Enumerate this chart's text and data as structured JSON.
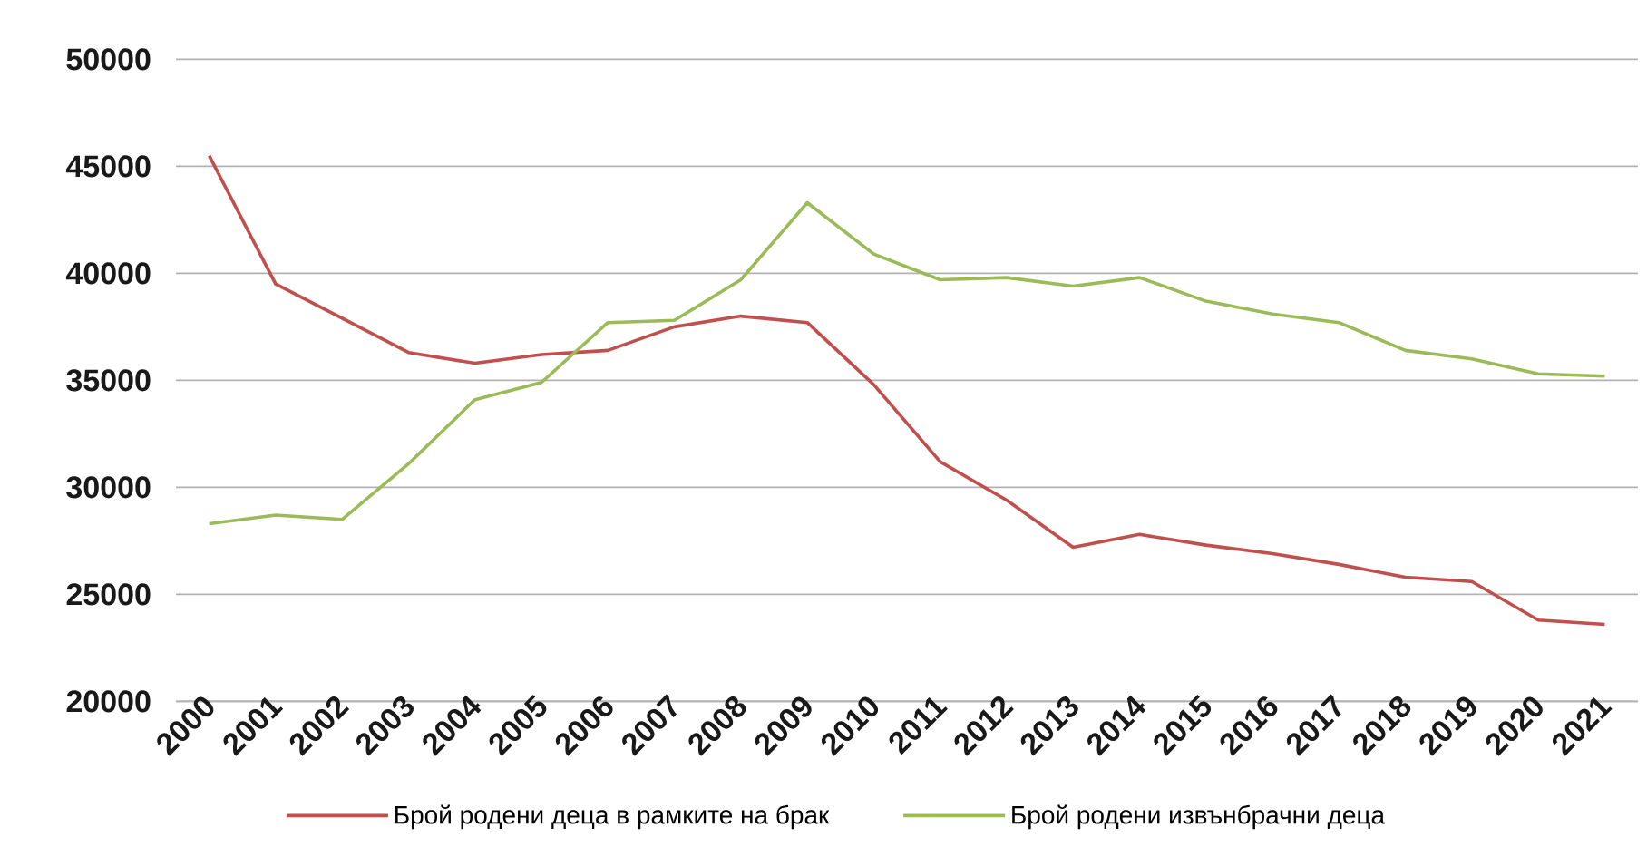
{
  "chart_data": {
    "type": "line",
    "categories": [
      "2000",
      "2001",
      "2002",
      "2003",
      "2004",
      "2005",
      "2006",
      "2007",
      "2008",
      "2009",
      "2010",
      "2011",
      "2012",
      "2013",
      "2014",
      "2015",
      "2016",
      "2017",
      "2018",
      "2019",
      "2020",
      "2021"
    ],
    "series": [
      {
        "name": "Брой родени деца в рамките на брак",
        "color": "#c0504d",
        "values": [
          45500,
          39500,
          37900,
          36300,
          35800,
          36200,
          36400,
          37500,
          38000,
          37700,
          34800,
          31200,
          29400,
          27200,
          27800,
          27300,
          26900,
          26400,
          25800,
          25600,
          23800,
          23600
        ]
      },
      {
        "name": "Брой родени извънбрачни деца",
        "color": "#9bbb59",
        "values": [
          28300,
          28700,
          28500,
          31100,
          34100,
          34900,
          37700,
          37800,
          39700,
          43300,
          40900,
          39700,
          39800,
          39400,
          39800,
          38700,
          38100,
          37700,
          36400,
          36000,
          35300,
          35200
        ]
      }
    ],
    "ylim": [
      20000,
      50000
    ],
    "yticks": [
      20000,
      25000,
      30000,
      35000,
      40000,
      45000,
      50000
    ],
    "grid": "y",
    "legend": "bottom"
  }
}
